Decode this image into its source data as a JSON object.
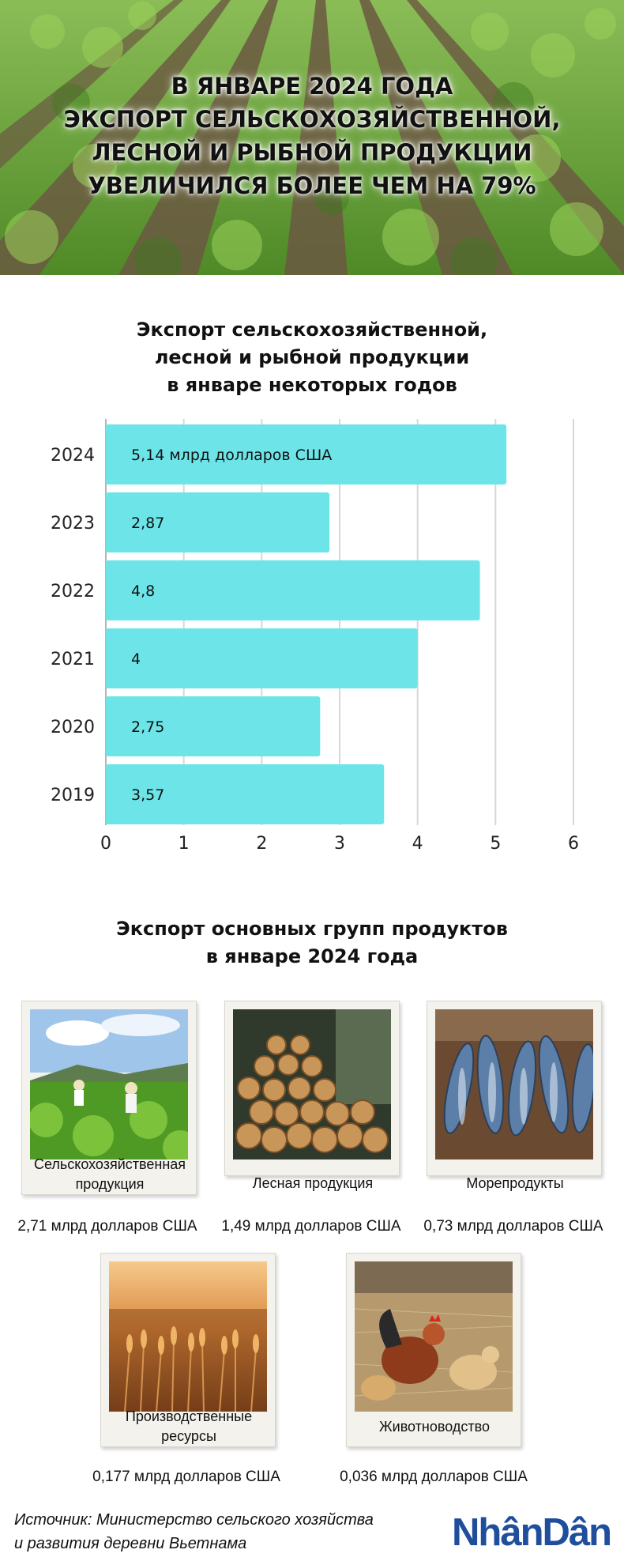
{
  "hero": {
    "title_lines": [
      "В ЯНВАРЕ 2024 ГОДА",
      "ЭКСПОРТ СЕЛЬСКОХОЗЯЙСТВЕННОЙ,",
      "ЛЕСНОЙ И РЫБНОЙ ПРОДУКЦИИ",
      "УВЕЛИЧИЛСЯ БОЛЕЕ ЧЕМ НА 79%"
    ]
  },
  "chart_section": {
    "title_lines": [
      "Экспорт сельскохозяйственной,",
      "лесной и рыбной продукции",
      "в январе некоторых годов"
    ]
  },
  "chart_data": {
    "type": "bar",
    "orientation": "horizontal",
    "categories": [
      "2024",
      "2023",
      "2022",
      "2021",
      "2020",
      "2019"
    ],
    "values": [
      5.14,
      2.87,
      4.8,
      4,
      2.75,
      3.57
    ],
    "data_labels": [
      "5,14 млрд долларов США",
      "2,87",
      "4,8",
      "4",
      "2,75",
      "3,57"
    ],
    "x_ticks": [
      "0",
      "1",
      "2",
      "3",
      "4",
      "5",
      "6"
    ],
    "xlim": [
      0,
      6
    ],
    "title": "",
    "xlabel": "",
    "ylabel": "",
    "grid": "vertical",
    "bar_color": "#6de5e8",
    "grid_color": "#d7d7d7"
  },
  "products_section": {
    "title_lines": [
      "Экспорт основных групп продуктов",
      "в январе 2024 года"
    ],
    "items": [
      {
        "label": "Сельскохозяйственная продукция",
        "value": "2,71 млрд долларов США",
        "icon": "agriculture-photo"
      },
      {
        "label": "Лесная продукция",
        "value": "1,49 млрд долларов США",
        "icon": "timber-photo"
      },
      {
        "label": "Морепродукты",
        "value": "0,73 млрд долларов США",
        "icon": "fish-photo"
      },
      {
        "label": "Производственные ресурсы",
        "value": "0,177 млрд долларов США",
        "icon": "wheat-photo"
      },
      {
        "label": "Животноводство",
        "value": "0,036 млрд долларов США",
        "icon": "chicken-photo"
      }
    ]
  },
  "footer": {
    "source_lines": [
      "Источник: Министерство сельского хозяйства",
      "и развития деревни Вьетнама"
    ],
    "logo_text": "NhânDân",
    "logo_color": "#1f4e9c"
  }
}
